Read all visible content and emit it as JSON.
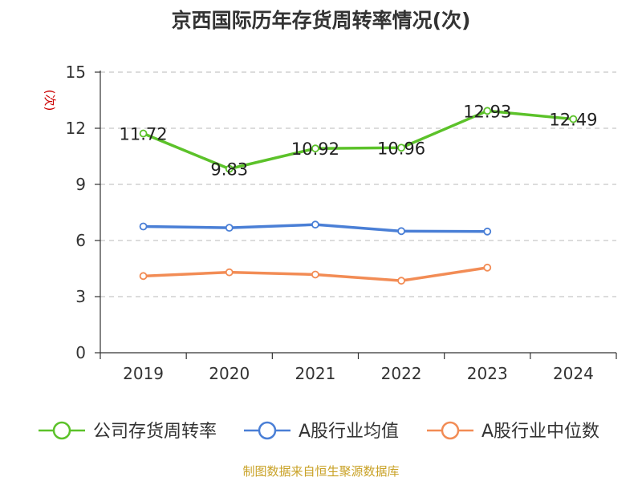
{
  "title": "京西国际历年存货周转率情况(次)",
  "source": "制图数据来自恒生聚源数据库",
  "chart_data": {
    "type": "line",
    "title": "京西国际历年存货周转率情况(次)",
    "ylabel": "(次)",
    "ylabel_color": "#cc0000",
    "categories": [
      "2019",
      "2020",
      "2021",
      "2022",
      "2023",
      "2024"
    ],
    "ylim": [
      0,
      15
    ],
    "yticks": [
      "0",
      "3",
      "6",
      "9",
      "12",
      "15"
    ],
    "grid": true,
    "legend_position": "bottom",
    "series": [
      {
        "name": "公司存货周转率",
        "color": "#5cc22a",
        "values": [
          11.72,
          9.83,
          10.92,
          10.96,
          12.93,
          12.49
        ],
        "labels": [
          "11.72",
          "9.83",
          "10.92",
          "10.96",
          "12.93",
          "12.49"
        ]
      },
      {
        "name": "A股行业均值",
        "color": "#4a7fd6",
        "values": [
          6.75,
          6.68,
          6.85,
          6.5,
          6.48,
          null
        ]
      },
      {
        "name": "A股行业中位数",
        "color": "#f28c55",
        "values": [
          4.1,
          4.3,
          4.18,
          3.85,
          4.55,
          null
        ]
      }
    ]
  }
}
